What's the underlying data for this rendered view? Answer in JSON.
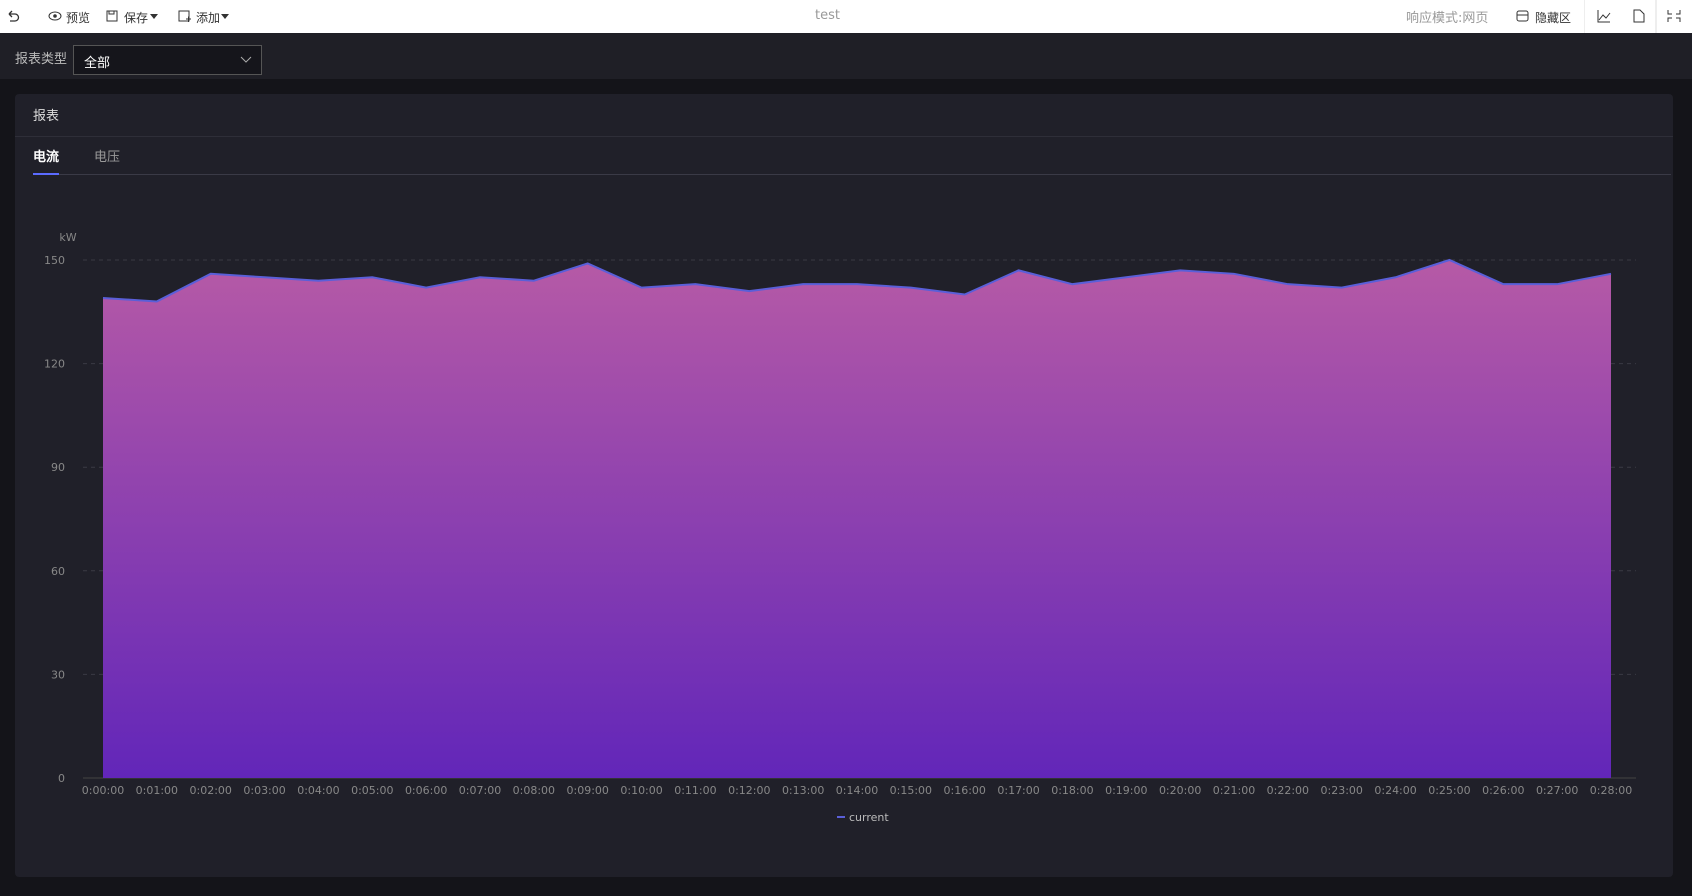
{
  "toolbar": {
    "preview": "预览",
    "save": "保存",
    "add": "添加",
    "title": "test",
    "mode": "响应模式:网页",
    "hide": "隐藏区"
  },
  "filter": {
    "label": "报表类型",
    "value": "全部"
  },
  "panel": {
    "title": "报表",
    "tabs": [
      "电流",
      "电压"
    ]
  },
  "chart_data": {
    "type": "area",
    "y_label": "kW",
    "categories": [
      "0:00:00",
      "0:01:00",
      "0:02:00",
      "0:03:00",
      "0:04:00",
      "0:05:00",
      "0:06:00",
      "0:07:00",
      "0:08:00",
      "0:09:00",
      "0:10:00",
      "0:11:00",
      "0:12:00",
      "0:13:00",
      "0:14:00",
      "0:15:00",
      "0:16:00",
      "0:17:00",
      "0:18:00",
      "0:19:00",
      "0:20:00",
      "0:21:00",
      "0:22:00",
      "0:23:00",
      "0:24:00",
      "0:25:00",
      "0:26:00",
      "0:27:00",
      "0:28:00"
    ],
    "series": [
      {
        "name": "current",
        "color": "#5a5fd8",
        "gradient": [
          "#b65aa6",
          "#6226b9"
        ],
        "values": [
          139,
          138,
          146,
          145,
          144,
          145,
          142,
          145,
          144,
          149,
          142,
          143,
          141,
          143,
          143,
          142,
          140,
          147,
          143,
          145,
          147,
          146,
          143,
          142,
          145,
          150,
          143,
          143,
          146
        ]
      }
    ],
    "ylim": [
      0,
      150
    ],
    "yticks": [
      0,
      30,
      60,
      90,
      120,
      150
    ],
    "grid": true
  }
}
